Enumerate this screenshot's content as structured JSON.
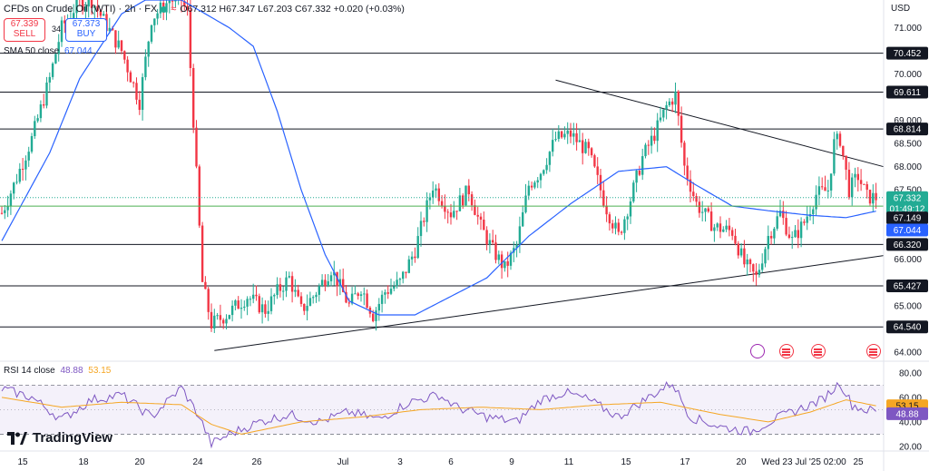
{
  "header": {
    "symbol": "CFDs on Crude Oil (WTI) · 2h · FX",
    "ohlc": "O67.312 H67.347 L67.203 C67.332 +0.020 (+0.03%)",
    "sell_price": "67.339",
    "sell_label": "SELL",
    "buy_price": "67.373",
    "buy_label": "BUY",
    "spread": "34",
    "sma_label": "SMA 50 close",
    "sma_value": "67.044",
    "currency": "USD"
  },
  "rsi": {
    "label": "RSI 14 close",
    "value": "48.88",
    "ma_value": "53.15",
    "ticks": [
      "80.00",
      "60.00",
      "40.00",
      "20.00"
    ]
  },
  "brand": "TradingView",
  "colors": {
    "up": "#22ab94",
    "down": "#f23645",
    "sma": "#2962ff",
    "rsi": "#7e57c2",
    "rsi_ma": "#f5a623",
    "level_tag": "#131722"
  },
  "chart_data": {
    "type": "candlestick",
    "title": "CFDs on Crude Oil (WTI)",
    "interval": "2h",
    "ylim": [
      63.8,
      71.6
    ],
    "y_ticks": [
      "71.000",
      "70.000",
      "69.000",
      "68.500",
      "68.000",
      "67.500",
      "66.000",
      "65.000",
      "64.000"
    ],
    "x_tick_labels": [
      "15",
      "18",
      "20",
      "24",
      "26",
      "Jul",
      "3",
      "6",
      "9",
      "11",
      "15",
      "17",
      "20",
      "25"
    ],
    "crosshair_date": "Wed 23 Jul '25",
    "crosshair_time": "02:00",
    "horizontal_levels": [
      70.452,
      69.611,
      68.814,
      66.32,
      65.427,
      64.54
    ],
    "price_tags": {
      "last": "67.332",
      "countdown": "01:49:12",
      "green_line": "67.149",
      "sma": "67.044"
    },
    "trendlines": [
      {
        "name": "descending resistance",
        "from": [
          "Jul 10",
          69.87
        ],
        "to": [
          "Jul 25",
          68.0
        ]
      },
      {
        "name": "ascending support",
        "from": [
          "Jun 24",
          64.03
        ],
        "to": [
          "Jul 25",
          66.08
        ]
      }
    ],
    "price_path": [
      [
        0,
        67.0
      ],
      [
        4,
        67.6
      ],
      [
        10,
        68.6
      ],
      [
        16,
        69.9
      ],
      [
        20,
        71.0
      ],
      [
        25,
        71.5
      ],
      [
        30,
        71.6
      ],
      [
        40,
        70.5
      ],
      [
        46,
        69.4
      ],
      [
        50,
        71.2
      ],
      [
        56,
        71.6
      ],
      [
        60,
        71.6
      ],
      [
        62,
        71.3
      ],
      [
        64,
        69.0
      ],
      [
        67,
        65.5
      ],
      [
        70,
        64.6
      ],
      [
        75,
        64.8
      ],
      [
        82,
        65.2
      ],
      [
        88,
        64.9
      ],
      [
        92,
        65.3
      ],
      [
        96,
        65.6
      ],
      [
        100,
        64.9
      ],
      [
        104,
        65.2
      ],
      [
        110,
        65.8
      ],
      [
        116,
        65.0
      ],
      [
        120,
        65.4
      ],
      [
        124,
        64.8
      ],
      [
        128,
        65.3
      ],
      [
        133,
        65.5
      ],
      [
        138,
        66.2
      ],
      [
        144,
        67.6
      ],
      [
        150,
        67.0
      ],
      [
        156,
        67.5
      ],
      [
        160,
        66.7
      ],
      [
        164,
        66.2
      ],
      [
        168,
        65.8
      ],
      [
        172,
        66.3
      ],
      [
        176,
        67.6
      ],
      [
        180,
        67.9
      ],
      [
        185,
        68.6
      ],
      [
        190,
        68.7
      ],
      [
        196,
        68.3
      ],
      [
        202,
        67.1
      ],
      [
        206,
        66.5
      ],
      [
        210,
        67.3
      ],
      [
        214,
        68.2
      ],
      [
        218,
        68.7
      ],
      [
        222,
        69.3
      ],
      [
        225,
        69.55
      ],
      [
        228,
        68.0
      ],
      [
        232,
        67.2
      ],
      [
        238,
        66.7
      ],
      [
        244,
        66.6
      ],
      [
        248,
        65.9
      ],
      [
        252,
        65.6
      ],
      [
        256,
        66.5
      ],
      [
        260,
        67.0
      ],
      [
        264,
        66.4
      ],
      [
        268,
        66.8
      ],
      [
        272,
        67.4
      ],
      [
        276,
        67.5
      ],
      [
        278,
        68.5
      ],
      [
        280,
        68.6
      ],
      [
        283,
        67.5
      ],
      [
        286,
        67.8
      ],
      [
        289,
        67.35
      ],
      [
        292,
        67.33
      ]
    ],
    "sma_path": [
      [
        0,
        66.4
      ],
      [
        16,
        68.3
      ],
      [
        26,
        69.9
      ],
      [
        40,
        71.3
      ],
      [
        48,
        71.6
      ],
      [
        60,
        71.6
      ],
      [
        76,
        71.0
      ],
      [
        84,
        70.6
      ],
      [
        92,
        69.2
      ],
      [
        100,
        67.5
      ],
      [
        108,
        66.1
      ],
      [
        116,
        65.1
      ],
      [
        126,
        64.8
      ],
      [
        138,
        64.8
      ],
      [
        150,
        65.2
      ],
      [
        162,
        65.6
      ],
      [
        176,
        66.5
      ],
      [
        190,
        67.2
      ],
      [
        206,
        67.9
      ],
      [
        222,
        68.0
      ],
      [
        232,
        67.6
      ],
      [
        244,
        67.15
      ],
      [
        256,
        67.05
      ],
      [
        270,
        66.95
      ],
      [
        282,
        66.9
      ],
      [
        292,
        67.04
      ]
    ],
    "rsi_ylim": [
      17,
      88
    ],
    "rsi_bands": [
      70,
      30
    ],
    "rsi_path": [
      [
        0,
        67
      ],
      [
        10,
        60
      ],
      [
        20,
        42
      ],
      [
        30,
        58
      ],
      [
        40,
        62
      ],
      [
        50,
        44
      ],
      [
        60,
        68
      ],
      [
        66,
        44
      ],
      [
        70,
        22
      ],
      [
        76,
        30
      ],
      [
        86,
        40
      ],
      [
        96,
        46
      ],
      [
        106,
        40
      ],
      [
        116,
        48
      ],
      [
        126,
        42
      ],
      [
        136,
        56
      ],
      [
        146,
        62
      ],
      [
        152,
        52
      ],
      [
        162,
        44
      ],
      [
        172,
        40
      ],
      [
        180,
        58
      ],
      [
        188,
        64
      ],
      [
        196,
        58
      ],
      [
        206,
        44
      ],
      [
        216,
        60
      ],
      [
        224,
        72
      ],
      [
        230,
        44
      ],
      [
        240,
        36
      ],
      [
        250,
        32
      ],
      [
        258,
        42
      ],
      [
        266,
        50
      ],
      [
        274,
        58
      ],
      [
        280,
        72
      ],
      [
        284,
        54
      ],
      [
        288,
        50
      ],
      [
        292,
        48.9
      ]
    ],
    "rsi_ma_path": [
      [
        0,
        60
      ],
      [
        20,
        52
      ],
      [
        40,
        56
      ],
      [
        60,
        54
      ],
      [
        70,
        38
      ],
      [
        80,
        30
      ],
      [
        100,
        40
      ],
      [
        120,
        44
      ],
      [
        140,
        50
      ],
      [
        160,
        52
      ],
      [
        180,
        50
      ],
      [
        200,
        54
      ],
      [
        220,
        56
      ],
      [
        240,
        46
      ],
      [
        256,
        40
      ],
      [
        270,
        48
      ],
      [
        282,
        58
      ],
      [
        292,
        53.15
      ]
    ]
  }
}
